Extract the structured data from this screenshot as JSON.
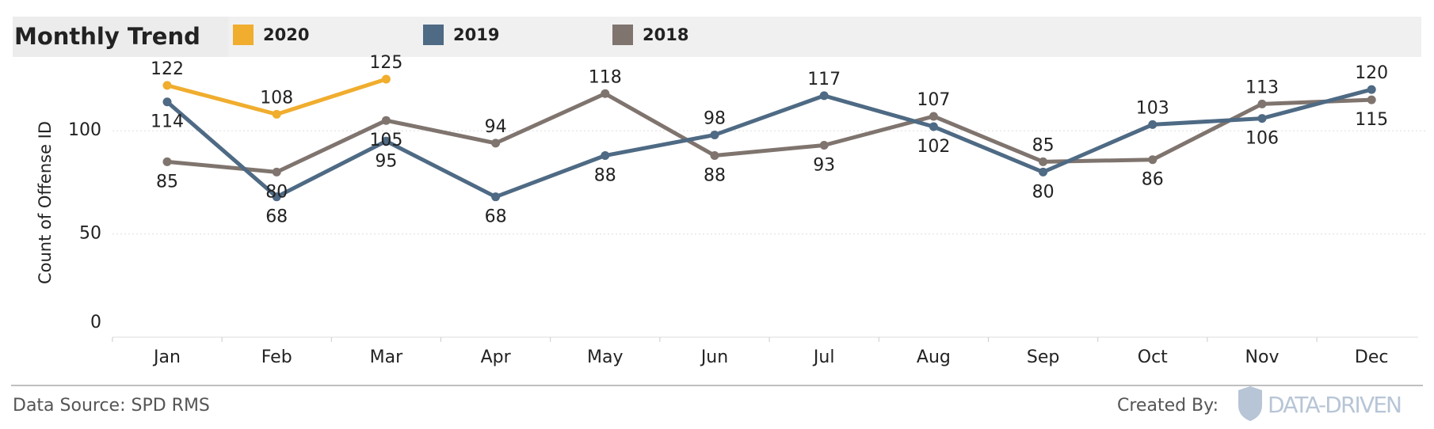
{
  "chart_data": {
    "type": "line",
    "title": "Monthly Trend",
    "y_label": "Count of Offense ID",
    "categories": [
      "Jan",
      "Feb",
      "Mar",
      "Apr",
      "May",
      "Jun",
      "Jul",
      "Aug",
      "Sep",
      "Oct",
      "Nov",
      "Dec"
    ],
    "series": [
      {
        "name": "2020",
        "color": "#f0ad2e",
        "values": [
          122,
          108,
          125,
          null,
          null,
          null,
          null,
          null,
          null,
          null,
          null,
          null
        ]
      },
      {
        "name": "2019",
        "color": "#4e6a84",
        "values": [
          114,
          68,
          95,
          68,
          88,
          98,
          117,
          102,
          80,
          103,
          106,
          120
        ]
      },
      {
        "name": "2018",
        "color": "#7f746e",
        "values": [
          85,
          80,
          105,
          94,
          118,
          88,
          93,
          107,
          85,
          86,
          113,
          115
        ]
      }
    ],
    "ylim": [
      0,
      130
    ],
    "yticks": [
      0,
      50,
      100
    ],
    "grid": true
  },
  "footer": {
    "source": "Data Source: SPD RMS",
    "created_by": "Created By:",
    "logo": "DATA-DRIVEN"
  }
}
